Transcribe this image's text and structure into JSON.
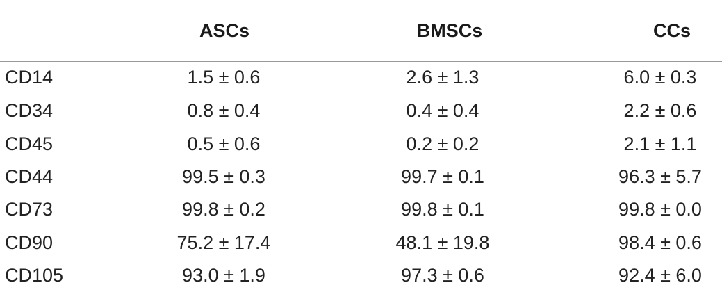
{
  "table": {
    "headers": [
      "",
      "ASCs",
      "BMSCs",
      "CCs"
    ],
    "rows": [
      {
        "marker": "CD14",
        "asc": "1.5 ± 0.6",
        "bmsc": "2.6 ± 1.3",
        "cc": "6.0 ± 0.3"
      },
      {
        "marker": "CD34",
        "asc": "0.8 ± 0.4",
        "bmsc": "0.4 ± 0.4",
        "cc": "2.2 ± 0.6"
      },
      {
        "marker": "CD45",
        "asc": "0.5 ± 0.6",
        "bmsc": "0.2 ± 0.2",
        "cc": "2.1 ± 1.1"
      },
      {
        "marker": "CD44",
        "asc": "99.5 ± 0.3",
        "bmsc": "99.7 ± 0.1",
        "cc": "96.3 ± 5.7"
      },
      {
        "marker": "CD73",
        "asc": "99.8 ± 0.2",
        "bmsc": "99.8 ± 0.1",
        "cc": "99.8 ± 0.0"
      },
      {
        "marker": "CD90",
        "asc": "75.2 ± 17.4",
        "bmsc": "48.1 ± 19.8",
        "cc": "98.4 ± 0.6"
      },
      {
        "marker": "CD105",
        "asc": "93.0 ± 1.9",
        "bmsc": "97.3 ± 0.6",
        "cc": "92.4 ± 6.0"
      }
    ]
  }
}
